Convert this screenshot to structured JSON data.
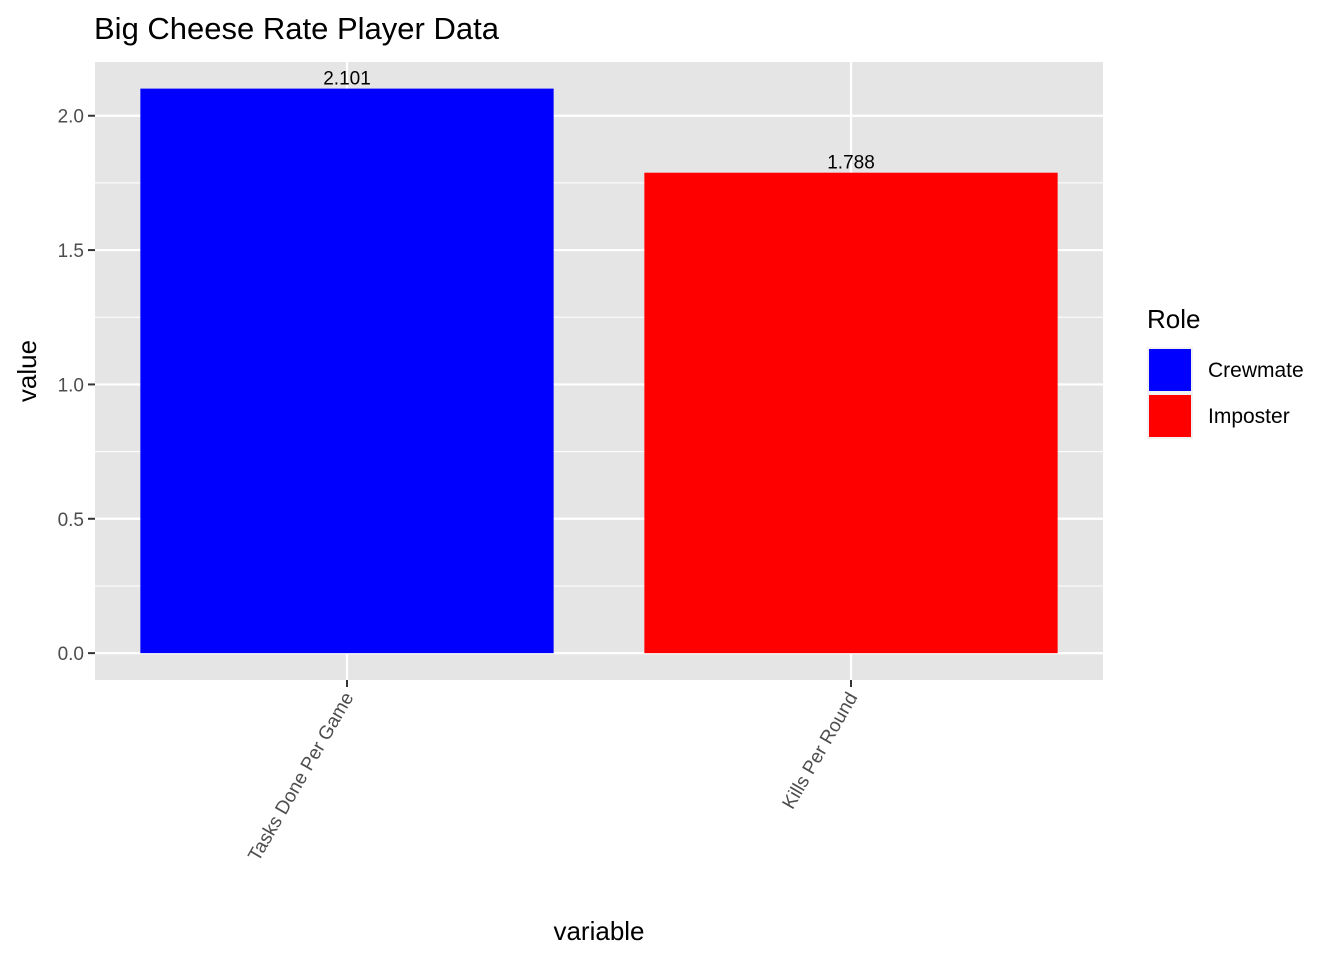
{
  "chart_data": {
    "type": "bar",
    "title": "Big Cheese Rate Player Data",
    "xlabel": "variable",
    "ylabel": "value",
    "categories": [
      "Tasks Done Per Game",
      "Kills Per Round"
    ],
    "values": [
      2.101,
      1.788
    ],
    "data_labels": [
      "2.101",
      "1.788"
    ],
    "fill_roles": [
      "Crewmate",
      "Imposter"
    ],
    "ylim": [
      -0.1,
      2.2
    ],
    "y_ticks": [
      0.0,
      0.5,
      1.0,
      1.5,
      2.0
    ],
    "y_tick_labels": [
      "0.0",
      "0.5",
      "1.0",
      "1.5",
      "2.0"
    ],
    "grid": true,
    "panel_background": "#e5e5e5",
    "grid_color": "#ffffff",
    "legend": {
      "title": "Role",
      "placement": "right",
      "entries": [
        {
          "label": "Crewmate",
          "color": "#0000ff"
        },
        {
          "label": "Imposter",
          "color": "#ff0000"
        }
      ]
    }
  }
}
